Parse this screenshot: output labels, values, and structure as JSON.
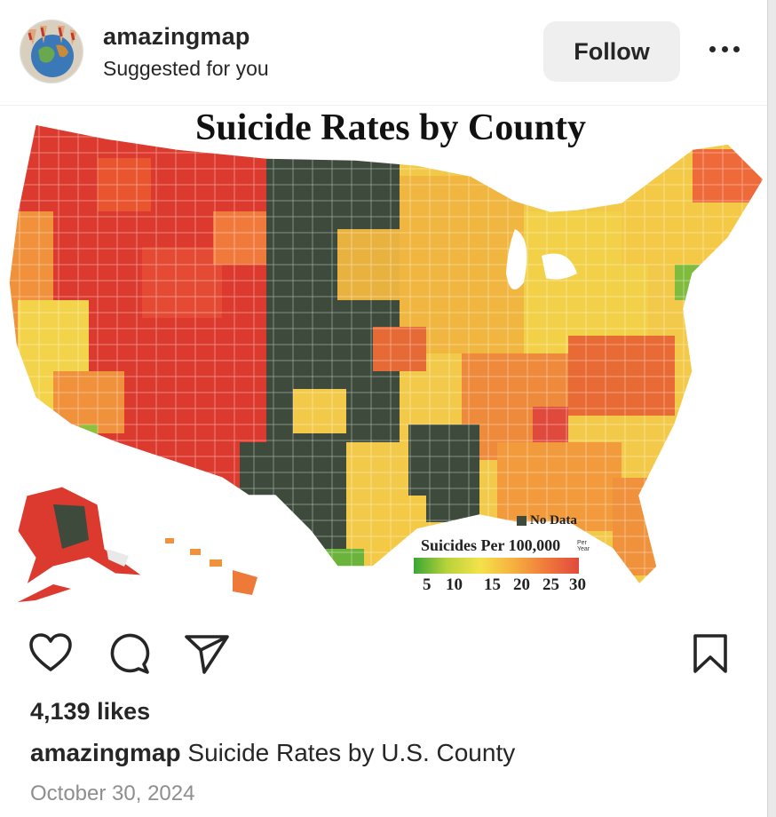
{
  "header": {
    "username": "amazingmap",
    "subtitle": "Suggested for you",
    "follow_label": "Follow",
    "more_icon": "more-horizontal-icon"
  },
  "post_image": {
    "title": "Suicide Rates by County",
    "legend": {
      "no_data_label": "No Data",
      "scale_title": "Suicides Per 100,000",
      "scale_unit": "Per Year",
      "ticks": [
        "5",
        "10",
        "15",
        "20",
        "25",
        "30"
      ],
      "colors": {
        "low": "#3aa635",
        "mid_low": "#b8d23a",
        "mid": "#f4e24a",
        "mid_high": "#f6b13f",
        "high": "#f07a3c",
        "very_high": "#e04a3d",
        "no_data": "#3d4a3c"
      }
    }
  },
  "actions": {
    "like_icon": "heart-icon",
    "comment_icon": "comment-icon",
    "share_icon": "send-icon",
    "save_icon": "bookmark-icon"
  },
  "likes": "4,139 likes",
  "caption": {
    "username": "amazingmap",
    "text": "Suicide Rates by U.S. County"
  },
  "date": "October 30, 2024"
}
